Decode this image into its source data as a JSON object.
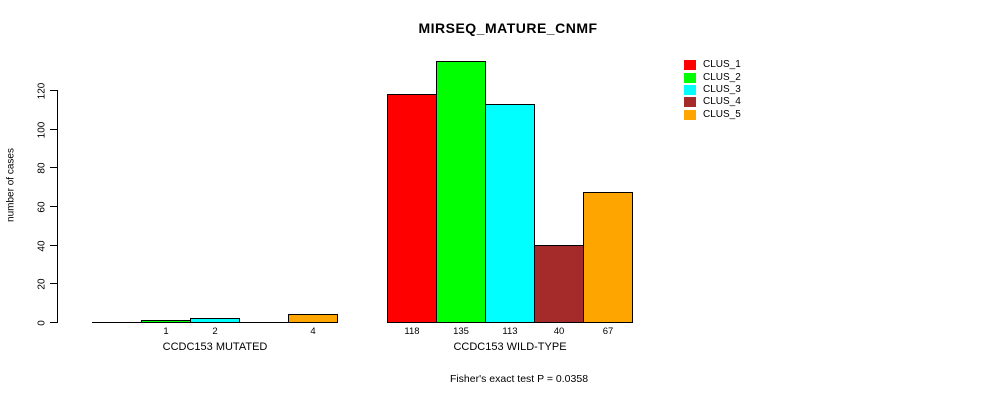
{
  "title": "MIRSEQ_MATURE_CNMF",
  "chart_data": {
    "type": "bar",
    "title": "MIRSEQ_MATURE_CNMF",
    "ylabel": "number of cases",
    "xlabel": "",
    "ylim": [
      0,
      135
    ],
    "yticks": [
      0,
      20,
      40,
      60,
      80,
      100,
      120
    ],
    "grid": false,
    "legend_position": "top-right-outside",
    "legend": [
      {
        "label": "CLUS_1",
        "color": "#ff0000"
      },
      {
        "label": "CLUS_2",
        "color": "#00ff00"
      },
      {
        "label": "CLUS_3",
        "color": "#00ffff"
      },
      {
        "label": "CLUS_4",
        "color": "#a52a2a"
      },
      {
        "label": "CLUS_5",
        "color": "#ffa500"
      }
    ],
    "groups": [
      {
        "label": "CCDC153 MUTATED",
        "series": [
          "CLUS_1",
          "CLUS_2",
          "CLUS_3",
          "CLUS_4",
          "CLUS_5"
        ],
        "values": [
          0,
          1,
          2,
          0,
          4
        ],
        "bar_labels": [
          "",
          "1",
          "2",
          "",
          "4"
        ]
      },
      {
        "label": "CCDC153 WILD-TYPE",
        "series": [
          "CLUS_1",
          "CLUS_2",
          "CLUS_3",
          "CLUS_4",
          "CLUS_5"
        ],
        "values": [
          118,
          135,
          113,
          40,
          67
        ],
        "bar_labels": [
          "118",
          "135",
          "113",
          "40",
          "67"
        ]
      }
    ],
    "footnote": "Fisher's exact test P = 0.0358"
  }
}
